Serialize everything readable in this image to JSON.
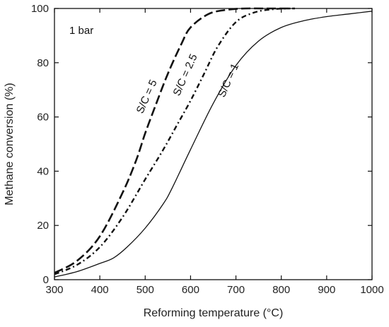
{
  "chart_data": {
    "type": "line",
    "title": "",
    "xlabel": "Reforming temperature (°C)",
    "ylabel": "Methane conversion (%)",
    "xlim": [
      300,
      1000
    ],
    "ylim": [
      0,
      100
    ],
    "xticks": [
      300,
      400,
      500,
      600,
      700,
      800,
      900,
      1000
    ],
    "yticks": [
      0,
      20,
      40,
      60,
      80,
      100
    ],
    "grid": false,
    "legend": "none (series labeled inline)",
    "annotations": [
      {
        "text": "1 bar"
      }
    ],
    "series": [
      {
        "name": "S/C = 5",
        "style": "long-dash",
        "label_anchor": [
          510,
          67
        ],
        "x": [
          300,
          350,
          400,
          450,
          480,
          500,
          520,
          550,
          580,
          600,
          640,
          680,
          720,
          760,
          800,
          830
        ],
        "y": [
          2.5,
          7,
          16,
          32,
          44,
          54,
          63,
          76,
          87,
          93,
          98,
          99.5,
          100,
          100,
          100,
          100
        ]
      },
      {
        "name": "S/C = 2.5",
        "style": "dot-dash",
        "label_anchor": [
          595,
          75
        ],
        "x": [
          300,
          350,
          400,
          450,
          500,
          540,
          570,
          600,
          630,
          660,
          700,
          740,
          780,
          820
        ],
        "y": [
          2,
          5.5,
          12,
          23,
          37,
          48,
          57,
          66,
          76,
          86,
          95,
          98.5,
          99.7,
          100
        ]
      },
      {
        "name": "S/C = 1",
        "style": "solid",
        "label_anchor": [
          690,
          73
        ],
        "x": [
          300,
          350,
          400,
          430,
          460,
          500,
          540,
          560,
          600,
          650,
          700,
          750,
          800,
          850,
          900,
          950,
          1000
        ],
        "y": [
          1,
          3,
          6,
          8,
          12,
          19,
          28,
          34,
          48,
          65,
          79,
          88,
          93,
          95.5,
          97,
          98,
          99
        ]
      }
    ]
  }
}
